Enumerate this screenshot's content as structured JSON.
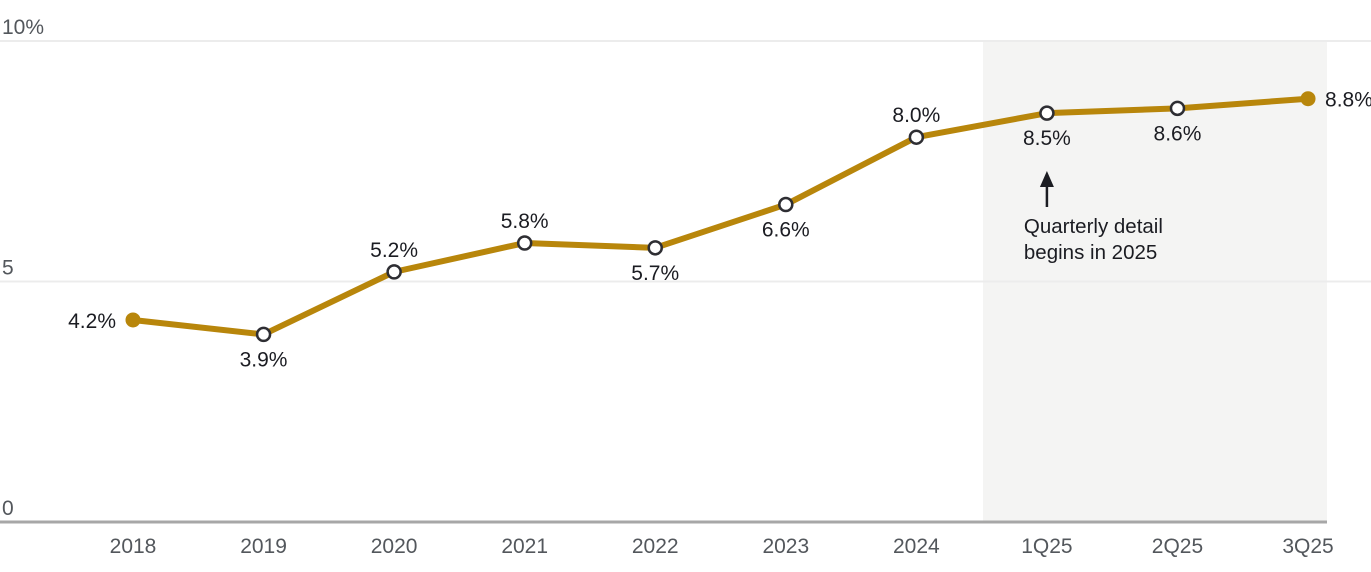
{
  "chart_data": {
    "type": "line",
    "title": "",
    "xlabel": "",
    "ylabel": "",
    "categories": [
      "2018",
      "2019",
      "2020",
      "2021",
      "2022",
      "2023",
      "2024",
      "1Q25",
      "2Q25",
      "3Q25"
    ],
    "values": [
      4.2,
      3.9,
      5.2,
      5.8,
      5.7,
      6.6,
      8.0,
      8.5,
      8.6,
      8.8
    ],
    "point_labels": [
      "4.2%",
      "3.9%",
      "5.2%",
      "5.8%",
      "5.7%",
      "6.6%",
      "8.0%",
      "8.5%",
      "8.6%",
      "8.8%"
    ],
    "label_positions": [
      "left",
      "below",
      "above",
      "above",
      "below",
      "below",
      "above",
      "below",
      "below",
      "right"
    ],
    "marker_styles": [
      "filled",
      "open",
      "open",
      "open",
      "open",
      "open",
      "open",
      "open",
      "open",
      "filled"
    ],
    "ylim": [
      0,
      10
    ],
    "y_ticks": [
      {
        "value": 10,
        "label": "10%"
      },
      {
        "value": 5,
        "label": "5"
      },
      {
        "value": 0,
        "label": "0"
      }
    ],
    "grid": "horizontal",
    "legend": "none",
    "line_color": "#B8860B",
    "marker_ring_color": "#2E2E33",
    "marker_fill_open": "#FFFFFF",
    "gridline_color": "#ECECEC",
    "axis_line_color": "#A7A7A7",
    "axis_label_color": "#53575C",
    "data_label_color": "#1B1C22",
    "highlight_region": {
      "from_category": "1Q25",
      "to_end": true,
      "color": "#F4F4F3",
      "note": "shaded band behind quarterly data points"
    },
    "annotation": {
      "lines": [
        "Quarterly detail",
        "begins in 2025"
      ],
      "arrow": "up",
      "target_category": "1Q25",
      "color": "#1B1C22"
    }
  }
}
